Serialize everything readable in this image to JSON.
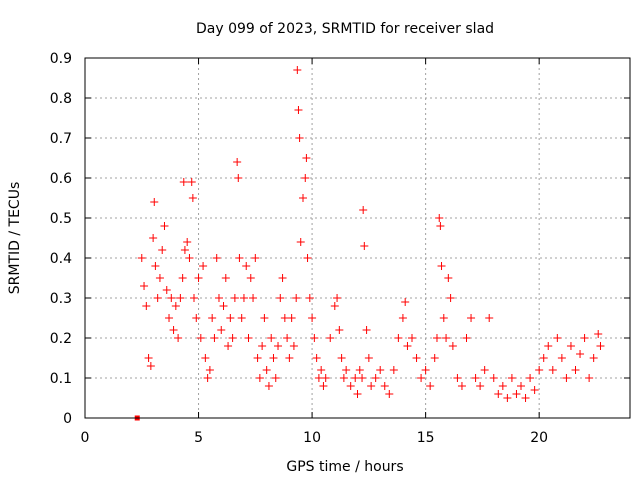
{
  "chart_data": {
    "type": "scatter",
    "title": "Day 099 of 2023, SRMTID for receiver slad",
    "xlabel": "GPS time / hours",
    "ylabel": "SRMTID / TECUs",
    "xlim": [
      0,
      24
    ],
    "ylim": [
      0,
      0.9
    ],
    "xticks": [
      0,
      5,
      10,
      15,
      20
    ],
    "xtick_labels": [
      "0",
      "5",
      "10",
      "15",
      "20"
    ],
    "yticks": [
      0,
      0.1,
      0.2,
      0.3,
      0.4,
      0.5,
      0.6,
      0.7,
      0.8,
      0.9
    ],
    "ytick_labels": [
      "0",
      "0.1",
      "0.2",
      "0.3",
      "0.4",
      "0.5",
      "0.6",
      "0.7",
      "0.8",
      "0.9"
    ],
    "grid": true,
    "legend": "none",
    "marker": "plus",
    "color": "#ff0000",
    "square_marker_point": {
      "x": 2.3,
      "y": 0.0
    },
    "series": [
      {
        "name": "SRMTID",
        "points": [
          [
            2.5,
            0.4
          ],
          [
            2.6,
            0.33
          ],
          [
            2.7,
            0.28
          ],
          [
            2.8,
            0.15
          ],
          [
            2.9,
            0.13
          ],
          [
            3.0,
            0.45
          ],
          [
            3.05,
            0.54
          ],
          [
            3.1,
            0.38
          ],
          [
            3.2,
            0.3
          ],
          [
            3.3,
            0.35
          ],
          [
            3.4,
            0.42
          ],
          [
            3.5,
            0.48
          ],
          [
            3.6,
            0.32
          ],
          [
            3.7,
            0.25
          ],
          [
            3.8,
            0.3
          ],
          [
            3.9,
            0.22
          ],
          [
            4.0,
            0.28
          ],
          [
            4.1,
            0.2
          ],
          [
            4.2,
            0.3
          ],
          [
            4.3,
            0.35
          ],
          [
            4.35,
            0.59
          ],
          [
            4.4,
            0.42
          ],
          [
            4.5,
            0.44
          ],
          [
            4.6,
            0.4
          ],
          [
            4.7,
            0.59
          ],
          [
            4.75,
            0.55
          ],
          [
            4.8,
            0.3
          ],
          [
            4.9,
            0.25
          ],
          [
            5.0,
            0.35
          ],
          [
            5.1,
            0.2
          ],
          [
            5.2,
            0.38
          ],
          [
            5.3,
            0.15
          ],
          [
            5.4,
            0.1
          ],
          [
            5.5,
            0.12
          ],
          [
            5.6,
            0.25
          ],
          [
            5.7,
            0.2
          ],
          [
            5.8,
            0.4
          ],
          [
            5.9,
            0.3
          ],
          [
            6.0,
            0.22
          ],
          [
            6.1,
            0.28
          ],
          [
            6.2,
            0.35
          ],
          [
            6.3,
            0.18
          ],
          [
            6.4,
            0.25
          ],
          [
            6.5,
            0.2
          ],
          [
            6.6,
            0.3
          ],
          [
            6.7,
            0.64
          ],
          [
            6.75,
            0.6
          ],
          [
            6.8,
            0.4
          ],
          [
            6.9,
            0.25
          ],
          [
            7.0,
            0.3
          ],
          [
            7.1,
            0.38
          ],
          [
            7.2,
            0.2
          ],
          [
            7.3,
            0.35
          ],
          [
            7.4,
            0.3
          ],
          [
            7.5,
            0.4
          ],
          [
            7.6,
            0.15
          ],
          [
            7.7,
            0.1
          ],
          [
            7.8,
            0.18
          ],
          [
            7.9,
            0.25
          ],
          [
            8.0,
            0.12
          ],
          [
            8.1,
            0.08
          ],
          [
            8.2,
            0.2
          ],
          [
            8.3,
            0.15
          ],
          [
            8.4,
            0.1
          ],
          [
            8.5,
            0.18
          ],
          [
            8.6,
            0.3
          ],
          [
            8.7,
            0.35
          ],
          [
            8.8,
            0.25
          ],
          [
            8.9,
            0.2
          ],
          [
            9.0,
            0.15
          ],
          [
            9.1,
            0.25
          ],
          [
            9.2,
            0.18
          ],
          [
            9.3,
            0.3
          ],
          [
            9.35,
            0.87
          ],
          [
            9.4,
            0.77
          ],
          [
            9.45,
            0.7
          ],
          [
            9.5,
            0.44
          ],
          [
            9.6,
            0.55
          ],
          [
            9.7,
            0.6
          ],
          [
            9.75,
            0.65
          ],
          [
            9.8,
            0.4
          ],
          [
            9.9,
            0.3
          ],
          [
            10.0,
            0.25
          ],
          [
            10.1,
            0.2
          ],
          [
            10.2,
            0.15
          ],
          [
            10.3,
            0.1
          ],
          [
            10.4,
            0.12
          ],
          [
            10.5,
            0.08
          ],
          [
            10.6,
            0.1
          ],
          [
            10.8,
            0.2
          ],
          [
            11.0,
            0.28
          ],
          [
            11.1,
            0.3
          ],
          [
            11.2,
            0.22
          ],
          [
            11.3,
            0.15
          ],
          [
            11.4,
            0.1
          ],
          [
            11.5,
            0.12
          ],
          [
            11.7,
            0.08
          ],
          [
            11.9,
            0.1
          ],
          [
            12.0,
            0.06
          ],
          [
            12.1,
            0.12
          ],
          [
            12.2,
            0.1
          ],
          [
            12.25,
            0.52
          ],
          [
            12.3,
            0.43
          ],
          [
            12.4,
            0.22
          ],
          [
            12.5,
            0.15
          ],
          [
            12.6,
            0.08
          ],
          [
            12.8,
            0.1
          ],
          [
            13.0,
            0.12
          ],
          [
            13.2,
            0.08
          ],
          [
            13.4,
            0.06
          ],
          [
            13.6,
            0.12
          ],
          [
            13.8,
            0.2
          ],
          [
            14.0,
            0.25
          ],
          [
            14.1,
            0.29
          ],
          [
            14.2,
            0.18
          ],
          [
            14.4,
            0.2
          ],
          [
            14.6,
            0.15
          ],
          [
            14.8,
            0.1
          ],
          [
            15.0,
            0.12
          ],
          [
            15.2,
            0.08
          ],
          [
            15.4,
            0.15
          ],
          [
            15.5,
            0.2
          ],
          [
            15.6,
            0.5
          ],
          [
            15.65,
            0.48
          ],
          [
            15.7,
            0.38
          ],
          [
            15.8,
            0.25
          ],
          [
            15.9,
            0.2
          ],
          [
            16.0,
            0.35
          ],
          [
            16.1,
            0.3
          ],
          [
            16.2,
            0.18
          ],
          [
            16.4,
            0.1
          ],
          [
            16.6,
            0.08
          ],
          [
            16.8,
            0.2
          ],
          [
            17.0,
            0.25
          ],
          [
            17.2,
            0.1
          ],
          [
            17.4,
            0.08
          ],
          [
            17.6,
            0.12
          ],
          [
            17.8,
            0.25
          ],
          [
            18.0,
            0.1
          ],
          [
            18.2,
            0.06
          ],
          [
            18.4,
            0.08
          ],
          [
            18.6,
            0.05
          ],
          [
            18.8,
            0.1
          ],
          [
            19.0,
            0.06
          ],
          [
            19.2,
            0.08
          ],
          [
            19.4,
            0.05
          ],
          [
            19.6,
            0.1
          ],
          [
            19.8,
            0.07
          ],
          [
            20.0,
            0.12
          ],
          [
            20.2,
            0.15
          ],
          [
            20.4,
            0.18
          ],
          [
            20.6,
            0.12
          ],
          [
            20.8,
            0.2
          ],
          [
            21.0,
            0.15
          ],
          [
            21.2,
            0.1
          ],
          [
            21.4,
            0.18
          ],
          [
            21.6,
            0.12
          ],
          [
            21.8,
            0.16
          ],
          [
            22.0,
            0.2
          ],
          [
            22.2,
            0.1
          ],
          [
            22.4,
            0.15
          ],
          [
            22.6,
            0.21
          ],
          [
            22.7,
            0.18
          ]
        ]
      }
    ]
  }
}
